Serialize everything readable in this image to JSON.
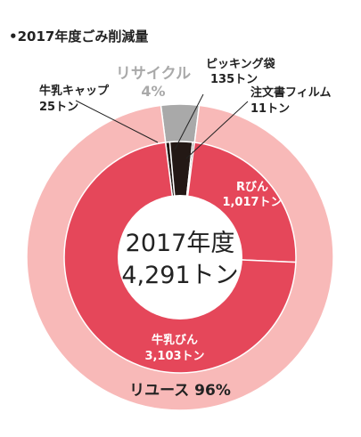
{
  "title": "•2017年度ごみ削減量",
  "center": {
    "line1": "2017年度",
    "line2": "4,291トン"
  },
  "colors": {
    "reuse_inner": "#e5475a",
    "reuse_outer": "#f8b9b8",
    "recycle": "#a9a9a9",
    "dark": "#231815",
    "separator": "#ffffff"
  },
  "chart_data": {
    "type": "pie",
    "unit": "トン",
    "total": 4291,
    "outer_ring": [
      {
        "name": "リユース",
        "percent": 96,
        "label": "リユース 96%"
      },
      {
        "name": "リサイクル",
        "percent": 4,
        "label": "リサイクル",
        "value_label": "4%"
      }
    ],
    "inner_ring": [
      {
        "name": "Rびん",
        "value": 1017,
        "value_label": "1,017トン",
        "group": "reuse"
      },
      {
        "name": "牛乳びん",
        "value": 3103,
        "value_label": "3,103トン",
        "group": "reuse"
      },
      {
        "name": "牛乳キャップ",
        "value": 25,
        "value_label": "25トン",
        "group": "recycle"
      },
      {
        "name": "ピッキング袋",
        "value": 135,
        "value_label": "135トン",
        "group": "recycle"
      },
      {
        "name": "注文書フィルム",
        "value": 11,
        "value_label": "11トン",
        "group": "recycle"
      }
    ]
  }
}
